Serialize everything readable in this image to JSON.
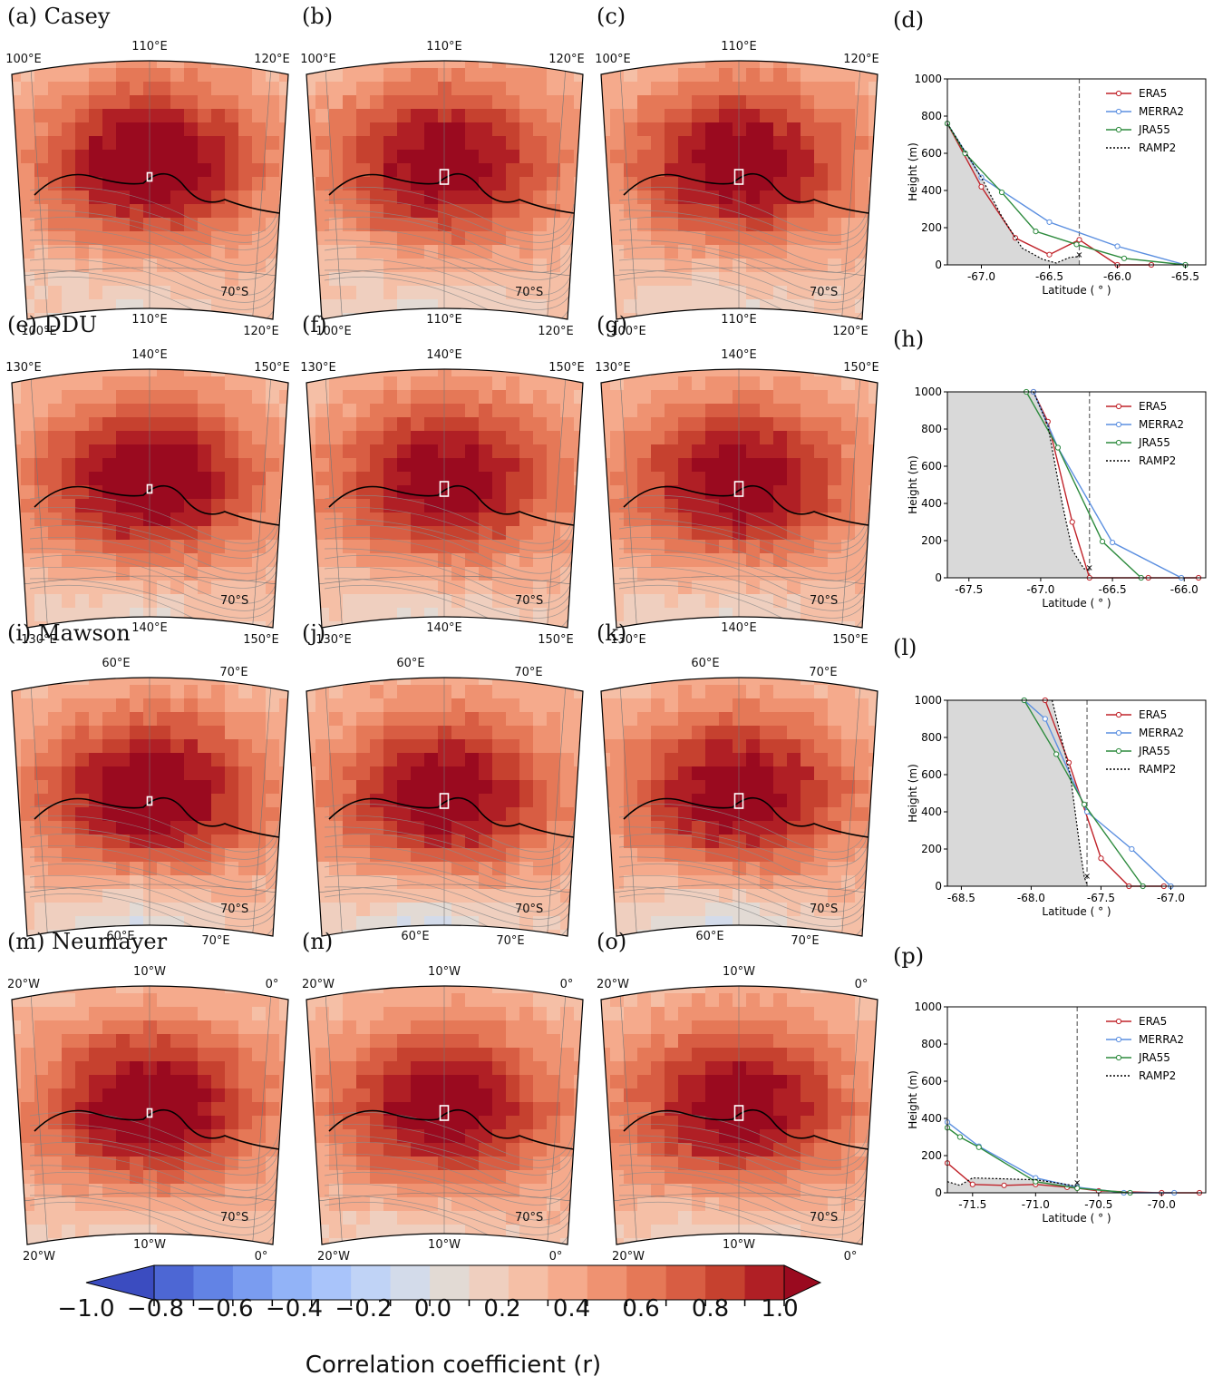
{
  "colors": {
    "scale": [
      "#3b4cc0",
      "#4d67d4",
      "#6283e5",
      "#7a9cf0",
      "#92b3f7",
      "#a9c4fa",
      "#c0d3f6",
      "#d3dbea",
      "#e2dad4",
      "#efcfbf",
      "#f5bfa6",
      "#f5aa8c",
      "#ef9271",
      "#e57857",
      "#d85d43",
      "#c6412f",
      "#b01f25",
      "#9a0a1f"
    ],
    "coast": "#000000",
    "contour": "#8c8c8c",
    "grid": "#777777",
    "terrain": "#d9d9d9",
    "era5": "#c0232a",
    "merra2": "#5b8fe0",
    "jra55": "#2e8b3e",
    "ramp2": "#000000"
  },
  "colorbar": {
    "ticks": [
      "−1.0",
      "−0.8",
      "−0.6",
      "−0.4",
      "−0.2",
      "0.0",
      "0.2",
      "0.4",
      "0.6",
      "0.8",
      "1.0"
    ],
    "label": "Correlation coefficient (r)"
  },
  "rows": [
    {
      "station": "Casey",
      "labels": [
        "(a) Casey",
        "(b)",
        "(c)",
        "(d)"
      ],
      "top_lons": [
        "100°E",
        "110°E",
        "120°E"
      ],
      "bottom_lons": [
        "100°E",
        "110°E",
        "120°E"
      ],
      "lat_label": "70°S"
    },
    {
      "station": "DDU",
      "labels": [
        "(e) DDU",
        "(f)",
        "(g)",
        "(h)"
      ],
      "top_lons": [
        "130°E",
        "140°E",
        "150°E"
      ],
      "bottom_lons": [
        "130°E",
        "140°E",
        "150°E"
      ],
      "lat_label": "70°S"
    },
    {
      "station": "Mawson",
      "labels": [
        "(i) Mawson",
        "(j)",
        "(k)",
        "(l)"
      ],
      "top_lons": [
        "60°E",
        "70°E"
      ],
      "bottom_lons": [
        "60°E",
        "70°E"
      ],
      "lat_label": "70°S"
    },
    {
      "station": "Neumayer",
      "labels": [
        "(m) Neumayer",
        "(n)",
        "(o)",
        "(p)"
      ],
      "top_lons": [
        "20°W",
        "10°W",
        "0°"
      ],
      "bottom_lons": [
        "20°W",
        "10°W",
        "0°"
      ],
      "lat_label": "70°S"
    }
  ],
  "chart_data": [
    {
      "type": "line",
      "panel": "(d)",
      "xlabel": "Latitude ( ° )",
      "ylabel": "Height (m)",
      "xlim": [
        -67.25,
        -65.35
      ],
      "ylim": [
        0,
        1000
      ],
      "xticks": [
        "-67.0",
        "-66.5",
        "-66.0",
        "-65.5"
      ],
      "yticks": [
        "0",
        "200",
        "400",
        "600",
        "800",
        "1000"
      ],
      "station_lat": -66.28,
      "legend": "top-right",
      "series": [
        {
          "name": "ERA5",
          "x": [
            -67.25,
            -67.0,
            -66.75,
            -66.5,
            -66.28,
            -66.0,
            -65.75
          ],
          "y": [
            760,
            420,
            145,
            55,
            135,
            0,
            0
          ]
        },
        {
          "name": "MERRA2",
          "x": [
            -67.25,
            -67.0,
            -66.5,
            -66.0,
            -65.5
          ],
          "y": [
            760,
            470,
            230,
            100,
            0
          ]
        },
        {
          "name": "JRA55",
          "x": [
            -67.25,
            -67.12,
            -66.85,
            -66.6,
            -66.3,
            -65.95,
            -65.5
          ],
          "y": [
            760,
            600,
            390,
            180,
            110,
            35,
            0
          ]
        },
        {
          "name": "RAMP2",
          "x": [
            -67.25,
            -67.0,
            -66.85,
            -66.7,
            -66.55,
            -66.45,
            -66.35,
            -66.28
          ],
          "y": [
            760,
            470,
            260,
            90,
            30,
            10,
            40,
            45
          ]
        }
      ]
    },
    {
      "type": "line",
      "panel": "(h)",
      "xlabel": "Latitude ( ° )",
      "ylabel": "Height (m)",
      "xlim": [
        -67.65,
        -65.85
      ],
      "ylim": [
        0,
        1000
      ],
      "xticks": [
        "-67.5",
        "-67.0",
        "-66.5",
        "-66.0"
      ],
      "yticks": [
        "0",
        "200",
        "400",
        "600",
        "800",
        "1000"
      ],
      "station_lat": -66.66,
      "legend": "top-right",
      "series": [
        {
          "name": "ERA5",
          "x": [
            -67.05,
            -66.95,
            -66.78,
            -66.66,
            -66.25,
            -65.9
          ],
          "y": [
            1000,
            840,
            300,
            0,
            0,
            0
          ]
        },
        {
          "name": "MERRA2",
          "x": [
            -67.05,
            -66.88,
            -66.5,
            -66.02
          ],
          "y": [
            1000,
            700,
            190,
            0
          ]
        },
        {
          "name": "JRA55",
          "x": [
            -67.1,
            -66.88,
            -66.57,
            -66.3
          ],
          "y": [
            1000,
            700,
            195,
            0
          ]
        },
        {
          "name": "RAMP2",
          "x": [
            -67.05,
            -66.95,
            -66.85,
            -66.78,
            -66.7,
            -66.66
          ],
          "y": [
            1000,
            820,
            400,
            150,
            50,
            40
          ]
        }
      ]
    },
    {
      "type": "line",
      "panel": "(l)",
      "xlabel": "Latitude ( ° )",
      "ylabel": "Height (m)",
      "xlim": [
        -68.6,
        -66.75
      ],
      "ylim": [
        0,
        1000
      ],
      "xticks": [
        "-68.5",
        "-68.0",
        "-67.5",
        "-67.0"
      ],
      "yticks": [
        "0",
        "200",
        "400",
        "600",
        "800",
        "1000"
      ],
      "station_lat": -67.6,
      "legend": "top-right",
      "series": [
        {
          "name": "ERA5",
          "x": [
            -67.9,
            -67.73,
            -67.5,
            -67.3,
            -67.05
          ],
          "y": [
            1000,
            665,
            150,
            0,
            0
          ]
        },
        {
          "name": "MERRA2",
          "x": [
            -68.05,
            -67.9,
            -67.6,
            -67.28,
            -67.0
          ],
          "y": [
            1000,
            900,
            400,
            200,
            0
          ]
        },
        {
          "name": "JRA55",
          "x": [
            -68.05,
            -67.82,
            -67.62,
            -67.2
          ],
          "y": [
            1000,
            710,
            440,
            0
          ]
        },
        {
          "name": "RAMP2",
          "x": [
            -67.85,
            -67.72,
            -67.65,
            -67.62,
            -67.6
          ],
          "y": [
            1000,
            600,
            200,
            50,
            10
          ]
        }
      ]
    },
    {
      "type": "line",
      "panel": "(p)",
      "xlabel": "Latitude ( ° )",
      "ylabel": "Height (m)",
      "xlim": [
        -71.7,
        -69.65
      ],
      "ylim": [
        0,
        1000
      ],
      "xticks": [
        "-71.5",
        "-71.0",
        "-70.5",
        "-70.0"
      ],
      "yticks": [
        "0",
        "200",
        "400",
        "600",
        "800",
        "1000"
      ],
      "station_lat": -70.67,
      "legend": "top-right",
      "series": [
        {
          "name": "ERA5",
          "x": [
            -71.7,
            -71.5,
            -71.25,
            -71.0,
            -70.75,
            -70.67,
            -70.5,
            -70.0,
            -69.7
          ],
          "y": [
            160,
            45,
            40,
            45,
            30,
            25,
            10,
            0,
            0
          ]
        },
        {
          "name": "MERRA2",
          "x": [
            -71.7,
            -71.45,
            -71.0,
            -70.67,
            -70.3,
            -69.9
          ],
          "y": [
            380,
            250,
            80,
            30,
            0,
            0
          ]
        },
        {
          "name": "JRA55",
          "x": [
            -71.7,
            -71.6,
            -71.45,
            -71.0,
            -70.67,
            -70.25
          ],
          "y": [
            350,
            300,
            245,
            60,
            25,
            0
          ]
        },
        {
          "name": "RAMP2",
          "x": [
            -71.7,
            -71.6,
            -71.5,
            -71.0,
            -70.8,
            -70.67
          ],
          "y": [
            60,
            40,
            80,
            70,
            50,
            35
          ]
        }
      ]
    }
  ]
}
